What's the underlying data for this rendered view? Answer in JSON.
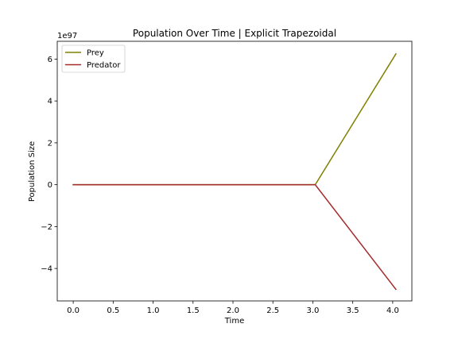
{
  "chart_data": {
    "type": "line",
    "title": "Population Over Time | Explicit Trapezoidal",
    "xlabel": "Time",
    "ylabel": "Population Size",
    "offset_label": "1e97",
    "xlim": [
      -0.2,
      4.24
    ],
    "ylim": [
      -5.55,
      6.85
    ],
    "xticks": [
      0.0,
      0.5,
      1.0,
      1.5,
      2.0,
      2.5,
      3.0,
      3.5,
      4.0
    ],
    "xtick_labels": [
      "0.0",
      "0.5",
      "1.0",
      "1.5",
      "2.0",
      "2.5",
      "3.0",
      "3.5",
      "4.0"
    ],
    "yticks": [
      -4,
      -2,
      0,
      2,
      4,
      6
    ],
    "ytick_labels": [
      "−4",
      "−2",
      "0",
      "2",
      "4",
      "6"
    ],
    "grid": false,
    "legend_position": "top-left",
    "series": [
      {
        "name": "Prey",
        "color": "#808000",
        "x": [
          0.0,
          3.03,
          4.04
        ],
        "y": [
          0.0,
          0.0,
          6.25
        ]
      },
      {
        "name": "Predator",
        "color": "#a52a2a",
        "x": [
          0.0,
          3.03,
          4.04
        ],
        "y": [
          0.0,
          0.0,
          -5.0
        ]
      }
    ]
  }
}
